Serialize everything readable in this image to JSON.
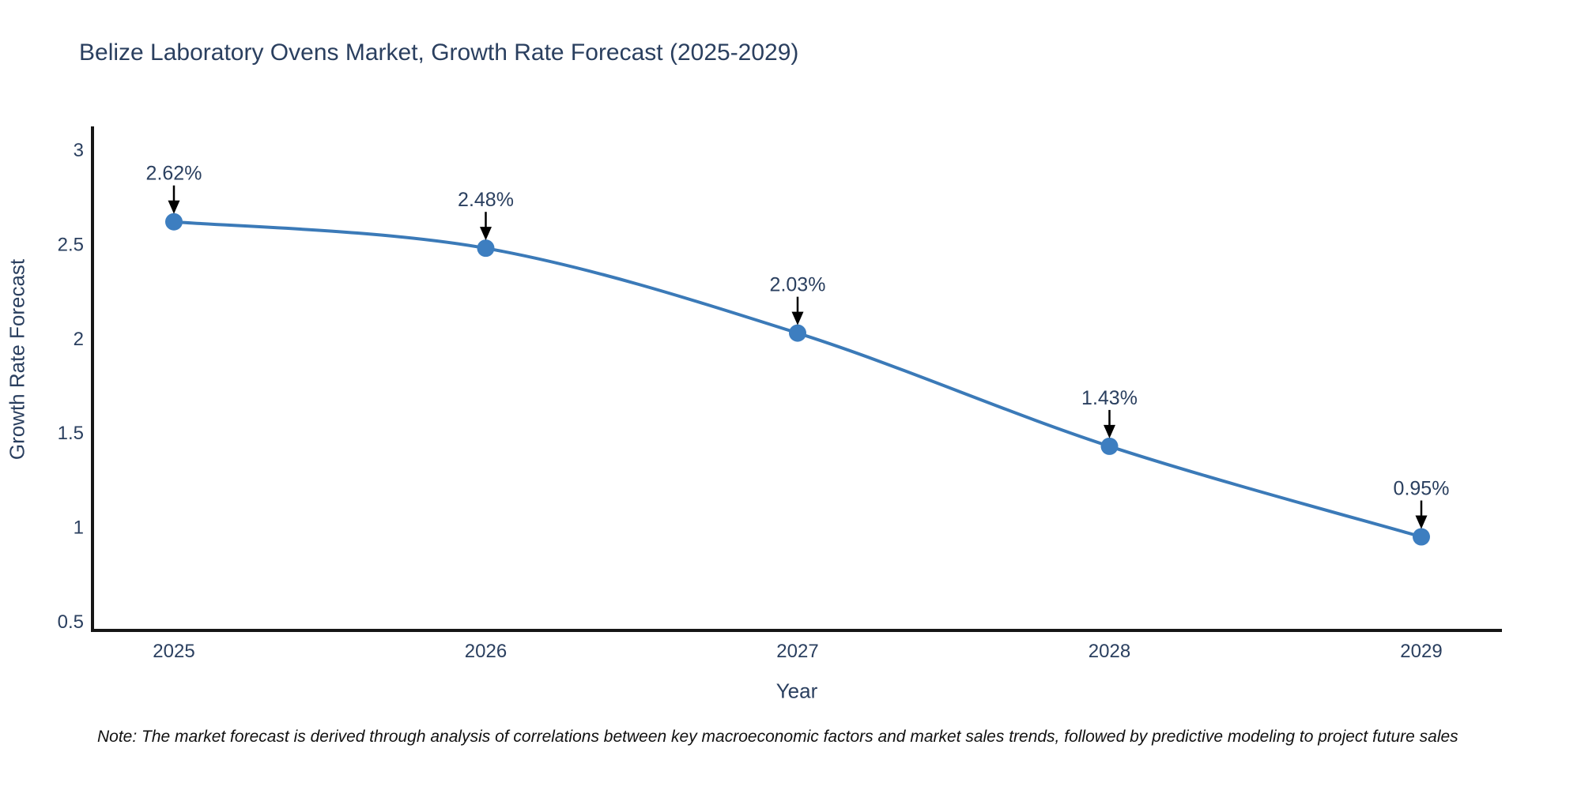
{
  "title": "Belize Laboratory Ovens Market, Growth Rate Forecast (2025-2029)",
  "note": "Note: The market forecast is derived through analysis of correlations between key macroeconomic factors and market sales trends, followed by predictive modeling to project future sales",
  "chart_data": {
    "type": "line",
    "title": "Belize Laboratory Ovens Market, Growth Rate Forecast (2025-2029)",
    "xlabel": "Year",
    "ylabel": "Growth Rate Forecast",
    "x": [
      2025,
      2026,
      2027,
      2028,
      2029
    ],
    "values": [
      2.62,
      2.48,
      2.03,
      1.43,
      0.95
    ],
    "point_labels": [
      "2.62%",
      "2.48%",
      "2.03%",
      "1.43%",
      "0.95%"
    ],
    "x_tick_labels": [
      "2025",
      "2026",
      "2027",
      "2028",
      "2029"
    ],
    "y_tick_values": [
      3,
      2.5,
      2,
      1.5,
      1,
      0.5
    ],
    "y_tick_labels": [
      "3",
      "2.5",
      "2",
      "1.5",
      "1",
      "0.5"
    ],
    "ylim": [
      0.44,
      3.13
    ],
    "line_shape": "spline",
    "grid": false,
    "legend_position": "none",
    "marker": "circle",
    "annotation_style": "value-above-with-down-arrow",
    "colors": {
      "line": "#3b7ab8",
      "marker": "#3d7ec0",
      "arrow": "#000000",
      "axis_line": "#161616",
      "chart_text": "#2a3f5f",
      "note_text": "#111111"
    }
  }
}
